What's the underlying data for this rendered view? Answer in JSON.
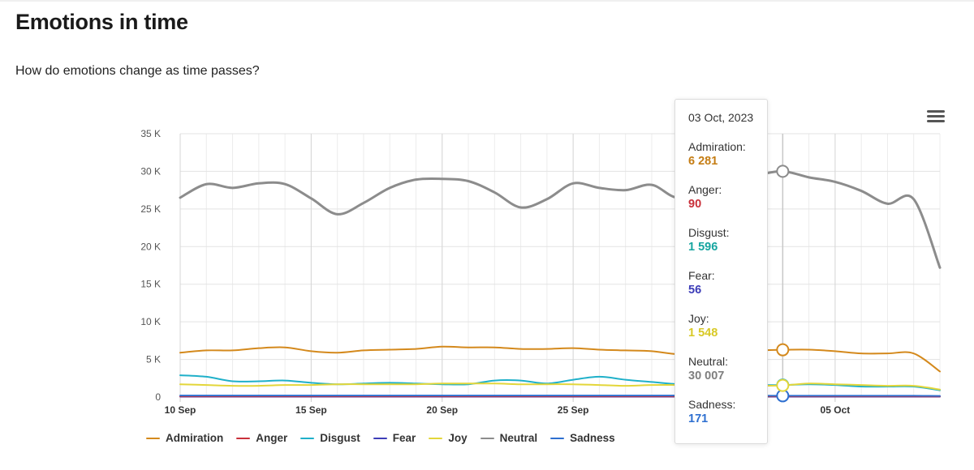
{
  "title": "Emotions in time",
  "subtitle": "How do emotions change as time passes?",
  "menu_icon": "hamburger-menu-icon",
  "chart_data": {
    "type": "line",
    "title": "",
    "xlabel": "",
    "ylabel": "",
    "ylim": [
      0,
      35000
    ],
    "yticks": [
      0,
      5000,
      10000,
      15000,
      20000,
      25000,
      30000,
      35000
    ],
    "ytick_labels": [
      "0",
      "5 K",
      "10 K",
      "15 K",
      "20 K",
      "25 K",
      "30 K",
      "35 K"
    ],
    "xtick_labels": [
      "10 Sep",
      "15 Sep",
      "20 Sep",
      "25 Sep",
      "05 Oct"
    ],
    "x": [
      "2023-09-10",
      "2023-09-11",
      "2023-09-12",
      "2023-09-13",
      "2023-09-14",
      "2023-09-15",
      "2023-09-16",
      "2023-09-17",
      "2023-09-18",
      "2023-09-19",
      "2023-09-20",
      "2023-09-21",
      "2023-09-22",
      "2023-09-23",
      "2023-09-24",
      "2023-09-25",
      "2023-09-26",
      "2023-09-27",
      "2023-09-28",
      "2023-09-29",
      "2023-09-30",
      "2023-10-01",
      "2023-10-02",
      "2023-10-03",
      "2023-10-04",
      "2023-10-05",
      "2023-10-06",
      "2023-10-07",
      "2023-10-08",
      "2023-10-09"
    ],
    "series": [
      {
        "name": "Admiration",
        "color": "#d4891c",
        "values": [
          5900,
          6200,
          6200,
          6500,
          6600,
          6100,
          5900,
          6200,
          6300,
          6400,
          6700,
          6600,
          6600,
          6400,
          6400,
          6500,
          6300,
          6200,
          6100,
          5700,
          5900,
          6100,
          6200,
          6281,
          6300,
          6100,
          5800,
          5800,
          5800,
          3400
        ]
      },
      {
        "name": "Anger",
        "color": "#c9303a",
        "values": [
          100,
          100,
          100,
          100,
          100,
          100,
          100,
          100,
          100,
          100,
          100,
          100,
          100,
          100,
          100,
          100,
          100,
          100,
          100,
          100,
          100,
          90,
          90,
          90,
          90,
          90,
          90,
          90,
          90,
          80
        ]
      },
      {
        "name": "Disgust",
        "color": "#1fb0c9",
        "values": [
          2900,
          2700,
          2100,
          2100,
          2200,
          1900,
          1700,
          1800,
          1900,
          1800,
          1700,
          1700,
          2200,
          2200,
          1800,
          2300,
          2700,
          2300,
          2000,
          1700,
          1600,
          1600,
          1600,
          1596,
          1700,
          1600,
          1400,
          1400,
          1400,
          900
        ]
      },
      {
        "name": "Fear",
        "color": "#3d3db8",
        "values": [
          60,
          60,
          60,
          60,
          60,
          60,
          60,
          60,
          60,
          60,
          60,
          60,
          60,
          60,
          60,
          60,
          60,
          60,
          60,
          60,
          60,
          56,
          56,
          56,
          56,
          56,
          56,
          56,
          56,
          50
        ]
      },
      {
        "name": "Joy",
        "color": "#e3d63a",
        "values": [
          1700,
          1600,
          1500,
          1500,
          1600,
          1600,
          1700,
          1700,
          1700,
          1700,
          1800,
          1800,
          1800,
          1700,
          1700,
          1700,
          1600,
          1500,
          1600,
          1600,
          1500,
          1500,
          1500,
          1548,
          1800,
          1700,
          1600,
          1500,
          1500,
          1000
        ]
      },
      {
        "name": "Neutral",
        "color": "#8c8c8c",
        "values": [
          26500,
          28300,
          27800,
          28400,
          28300,
          26400,
          24300,
          25800,
          27800,
          28900,
          29000,
          28700,
          27200,
          25200,
          26300,
          28400,
          27800,
          27500,
          28200,
          26500,
          28200,
          29000,
          29500,
          30007,
          29200,
          28600,
          27400,
          25700,
          26300,
          17200
        ]
      },
      {
        "name": "Sadness",
        "color": "#2d6fd0",
        "values": [
          200,
          200,
          200,
          200,
          200,
          200,
          200,
          200,
          200,
          200,
          200,
          200,
          200,
          200,
          200,
          200,
          200,
          200,
          200,
          200,
          200,
          180,
          175,
          171,
          170,
          170,
          170,
          170,
          170,
          150
        ]
      }
    ],
    "legend_position": "bottom-left",
    "grid": true,
    "highlighted_date": "2023-10-03"
  },
  "tooltip": {
    "date": "03 Oct, 2023",
    "rows": [
      {
        "label": "Admiration:",
        "value": "6 281",
        "color": "#c57d14"
      },
      {
        "label": "Anger:",
        "value": "90",
        "color": "#c9303a"
      },
      {
        "label": "Disgust:",
        "value": "1 596",
        "color": "#17a5a0"
      },
      {
        "label": "Fear:",
        "value": "56",
        "color": "#3d3db8"
      },
      {
        "label": "Joy:",
        "value": "1 548",
        "color": "#d8c925"
      },
      {
        "label": "Neutral:",
        "value": "30 007",
        "color": "#7f7f7f"
      },
      {
        "label": "Sadness:",
        "value": "171",
        "color": "#2d6fd0"
      }
    ]
  }
}
